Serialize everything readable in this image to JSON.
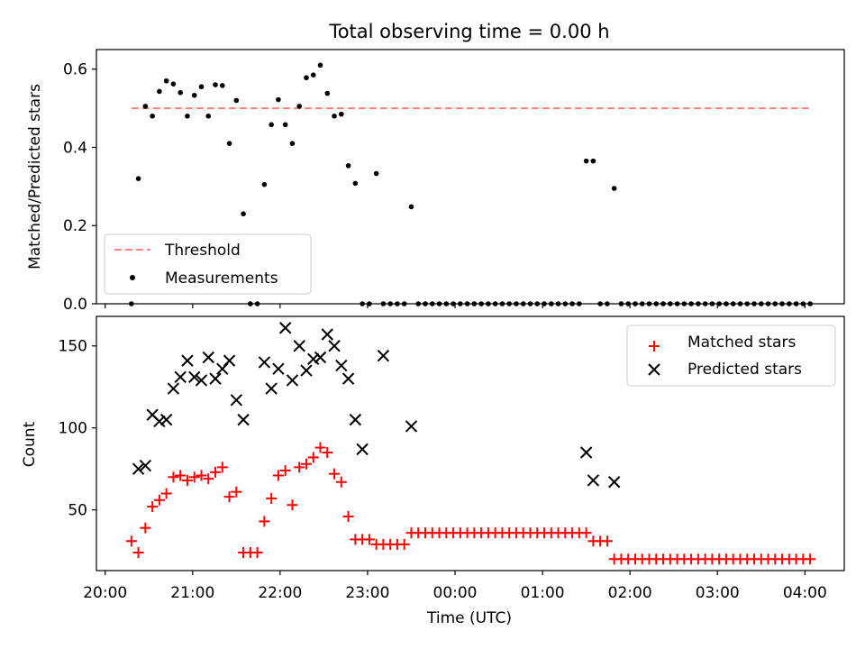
{
  "chart_data": [
    {
      "type": "scatter",
      "title": "Total observing time = 0.00 h",
      "xlabel": "",
      "ylabel": "Matched/Predicted stars",
      "ylim": [
        0,
        0.65
      ],
      "yticks": [
        0.0,
        0.2,
        0.4,
        0.6
      ],
      "ytick_labels": [
        "0.0",
        "0.2",
        "0.4",
        "0.6"
      ],
      "x_unit": "hours since 20:00 UTC",
      "xlim": [
        -0.1,
        8.45
      ],
      "legend": {
        "placement": "lower-left",
        "entries": [
          "Threshold",
          "Measurements"
        ]
      },
      "threshold": {
        "name": "Threshold",
        "y": 0.5,
        "x_range": [
          0.3,
          8.08
        ],
        "color": "#ff8080",
        "style": "dashed"
      },
      "series": [
        {
          "name": "Measurements",
          "color": "#000000",
          "marker": "dot",
          "x": [
            0.3,
            0.38,
            0.46,
            0.54,
            0.62,
            0.7,
            0.78,
            0.86,
            0.94,
            1.02,
            1.1,
            1.18,
            1.26,
            1.34,
            1.42,
            1.5,
            1.58,
            1.66,
            1.74,
            1.82,
            1.9,
            1.98,
            2.06,
            2.14,
            2.22,
            2.3,
            2.38,
            2.46,
            2.54,
            2.62,
            2.7,
            2.78,
            2.86,
            2.94,
            3.02,
            3.1,
            3.18,
            3.26,
            3.34,
            3.42,
            3.5,
            3.58,
            3.66,
            3.74,
            3.82,
            3.9,
            3.98,
            4.06,
            4.14,
            4.22,
            4.3,
            4.38,
            4.46,
            4.54,
            4.62,
            4.7,
            4.78,
            4.86,
            4.94,
            5.02,
            5.1,
            5.18,
            5.26,
            5.34,
            5.42,
            5.5,
            5.58,
            5.66,
            5.74,
            5.82,
            5.9,
            5.98,
            6.06,
            6.14,
            6.22,
            6.3,
            6.38,
            6.46,
            6.54,
            6.62,
            6.7,
            6.78,
            6.86,
            6.94,
            7.02,
            7.1,
            7.18,
            7.26,
            7.34,
            7.42,
            7.5,
            7.58,
            7.66,
            7.74,
            7.82,
            7.9,
            7.98,
            8.06
          ],
          "y": [
            0.0,
            0.32,
            0.505,
            0.48,
            0.543,
            0.57,
            0.562,
            0.54,
            0.48,
            0.533,
            0.555,
            0.48,
            0.56,
            0.558,
            0.41,
            0.52,
            0.23,
            0.0,
            0.0,
            0.305,
            0.458,
            0.522,
            0.458,
            0.41,
            0.505,
            0.578,
            0.585,
            0.61,
            0.538,
            0.48,
            0.485,
            0.353,
            0.308,
            0.0,
            0.0,
            0.333,
            0.0,
            0.0,
            0.0,
            0.0,
            0.248,
            0.0,
            0.0,
            0.0,
            0.0,
            0.0,
            0.0,
            0.0,
            0.0,
            0.0,
            0.0,
            0.0,
            0.0,
            0.0,
            0.0,
            0.0,
            0.0,
            0.0,
            0.0,
            0.0,
            0.0,
            0.0,
            0.0,
            0.0,
            0.0,
            0.365,
            0.365,
            0.0,
            0.0,
            0.295,
            0.0,
            0.0,
            0.0,
            0.0,
            0.0,
            0.0,
            0.0,
            0.0,
            0.0,
            0.0,
            0.0,
            0.0,
            0.0,
            0.0,
            0.0,
            0.0,
            0.0,
            0.0,
            0.0,
            0.0,
            0.0,
            0.0,
            0.0,
            0.0,
            0.0,
            0.0,
            0.0,
            0.0
          ]
        }
      ]
    },
    {
      "type": "scatter",
      "title": "",
      "xlabel": "Time (UTC)",
      "ylabel": "Count",
      "ylim": [
        13,
        168
      ],
      "yticks": [
        50,
        100,
        150
      ],
      "ytick_labels": [
        "50",
        "100",
        "150"
      ],
      "x_unit": "hours since 20:00 UTC",
      "xlim": [
        -0.1,
        8.45
      ],
      "xticks": [
        0,
        1,
        2,
        3,
        4,
        5,
        6,
        7,
        8
      ],
      "xtick_labels": [
        "20:00",
        "21:00",
        "22:00",
        "23:00",
        "00:00",
        "01:00",
        "02:00",
        "03:00",
        "04:00"
      ],
      "legend": {
        "placement": "top-right",
        "entries": [
          "Matched stars",
          "Predicted stars"
        ]
      },
      "series": [
        {
          "name": "Matched stars",
          "color": "#ff0000",
          "marker": "plus",
          "x": [
            0.3,
            0.38,
            0.46,
            0.54,
            0.62,
            0.7,
            0.78,
            0.86,
            0.94,
            1.02,
            1.1,
            1.18,
            1.26,
            1.34,
            1.42,
            1.5,
            1.58,
            1.66,
            1.74,
            1.82,
            1.9,
            1.98,
            2.06,
            2.14,
            2.22,
            2.3,
            2.38,
            2.46,
            2.54,
            2.62,
            2.7,
            2.78,
            2.86,
            2.94,
            3.02,
            3.1,
            3.18,
            3.26,
            3.34,
            3.42,
            3.5,
            3.58,
            3.66,
            3.74,
            3.82,
            3.9,
            3.98,
            4.06,
            4.14,
            4.22,
            4.3,
            4.38,
            4.46,
            4.54,
            4.62,
            4.7,
            4.78,
            4.86,
            4.94,
            5.02,
            5.1,
            5.18,
            5.26,
            5.34,
            5.42,
            5.5,
            5.58,
            5.66,
            5.74,
            5.82,
            5.9,
            5.98,
            6.06,
            6.14,
            6.22,
            6.3,
            6.38,
            6.46,
            6.54,
            6.62,
            6.7,
            6.78,
            6.86,
            6.94,
            7.02,
            7.1,
            7.18,
            7.26,
            7.34,
            7.42,
            7.5,
            7.58,
            7.66,
            7.74,
            7.82,
            7.9,
            7.98,
            8.06
          ],
          "y": [
            31,
            24,
            39,
            52,
            56,
            60,
            70,
            71,
            68,
            70,
            71,
            69,
            73,
            76,
            58,
            61,
            24,
            24,
            24,
            43,
            57,
            71,
            74,
            53,
            76,
            78,
            82,
            88,
            85,
            72,
            67,
            46,
            32,
            32,
            32,
            29,
            29,
            29,
            29,
            29,
            36,
            36,
            36,
            36,
            36,
            36,
            36,
            36,
            36,
            36,
            36,
            36,
            36,
            36,
            36,
            36,
            36,
            36,
            36,
            36,
            36,
            36,
            36,
            36,
            36,
            36,
            31,
            31,
            31,
            20,
            20,
            20,
            20,
            20,
            20,
            20,
            20,
            20,
            20,
            20,
            20,
            20,
            20,
            20,
            20,
            20,
            20,
            20,
            20,
            20,
            20,
            20,
            20,
            20,
            20,
            20,
            20,
            20
          ]
        },
        {
          "name": "Predicted stars",
          "color": "#000000",
          "marker": "x",
          "x": [
            0.38,
            0.46,
            0.54,
            0.62,
            0.7,
            0.78,
            0.86,
            0.94,
            1.02,
            1.1,
            1.18,
            1.26,
            1.34,
            1.42,
            1.5,
            1.58,
            1.82,
            1.9,
            1.98,
            2.06,
            2.14,
            2.22,
            2.3,
            2.38,
            2.46,
            2.54,
            2.62,
            2.7,
            2.78,
            2.86,
            2.94,
            3.18,
            3.5,
            5.5,
            5.58,
            5.82
          ],
          "y": [
            75,
            77,
            108,
            104,
            105,
            124,
            131,
            141,
            131,
            129,
            143,
            130,
            136,
            141,
            117,
            105,
            140,
            124,
            136,
            161,
            129,
            150,
            135,
            142,
            143,
            157,
            150,
            138,
            130,
            105,
            87,
            144,
            101,
            85,
            68,
            67
          ]
        }
      ]
    }
  ]
}
